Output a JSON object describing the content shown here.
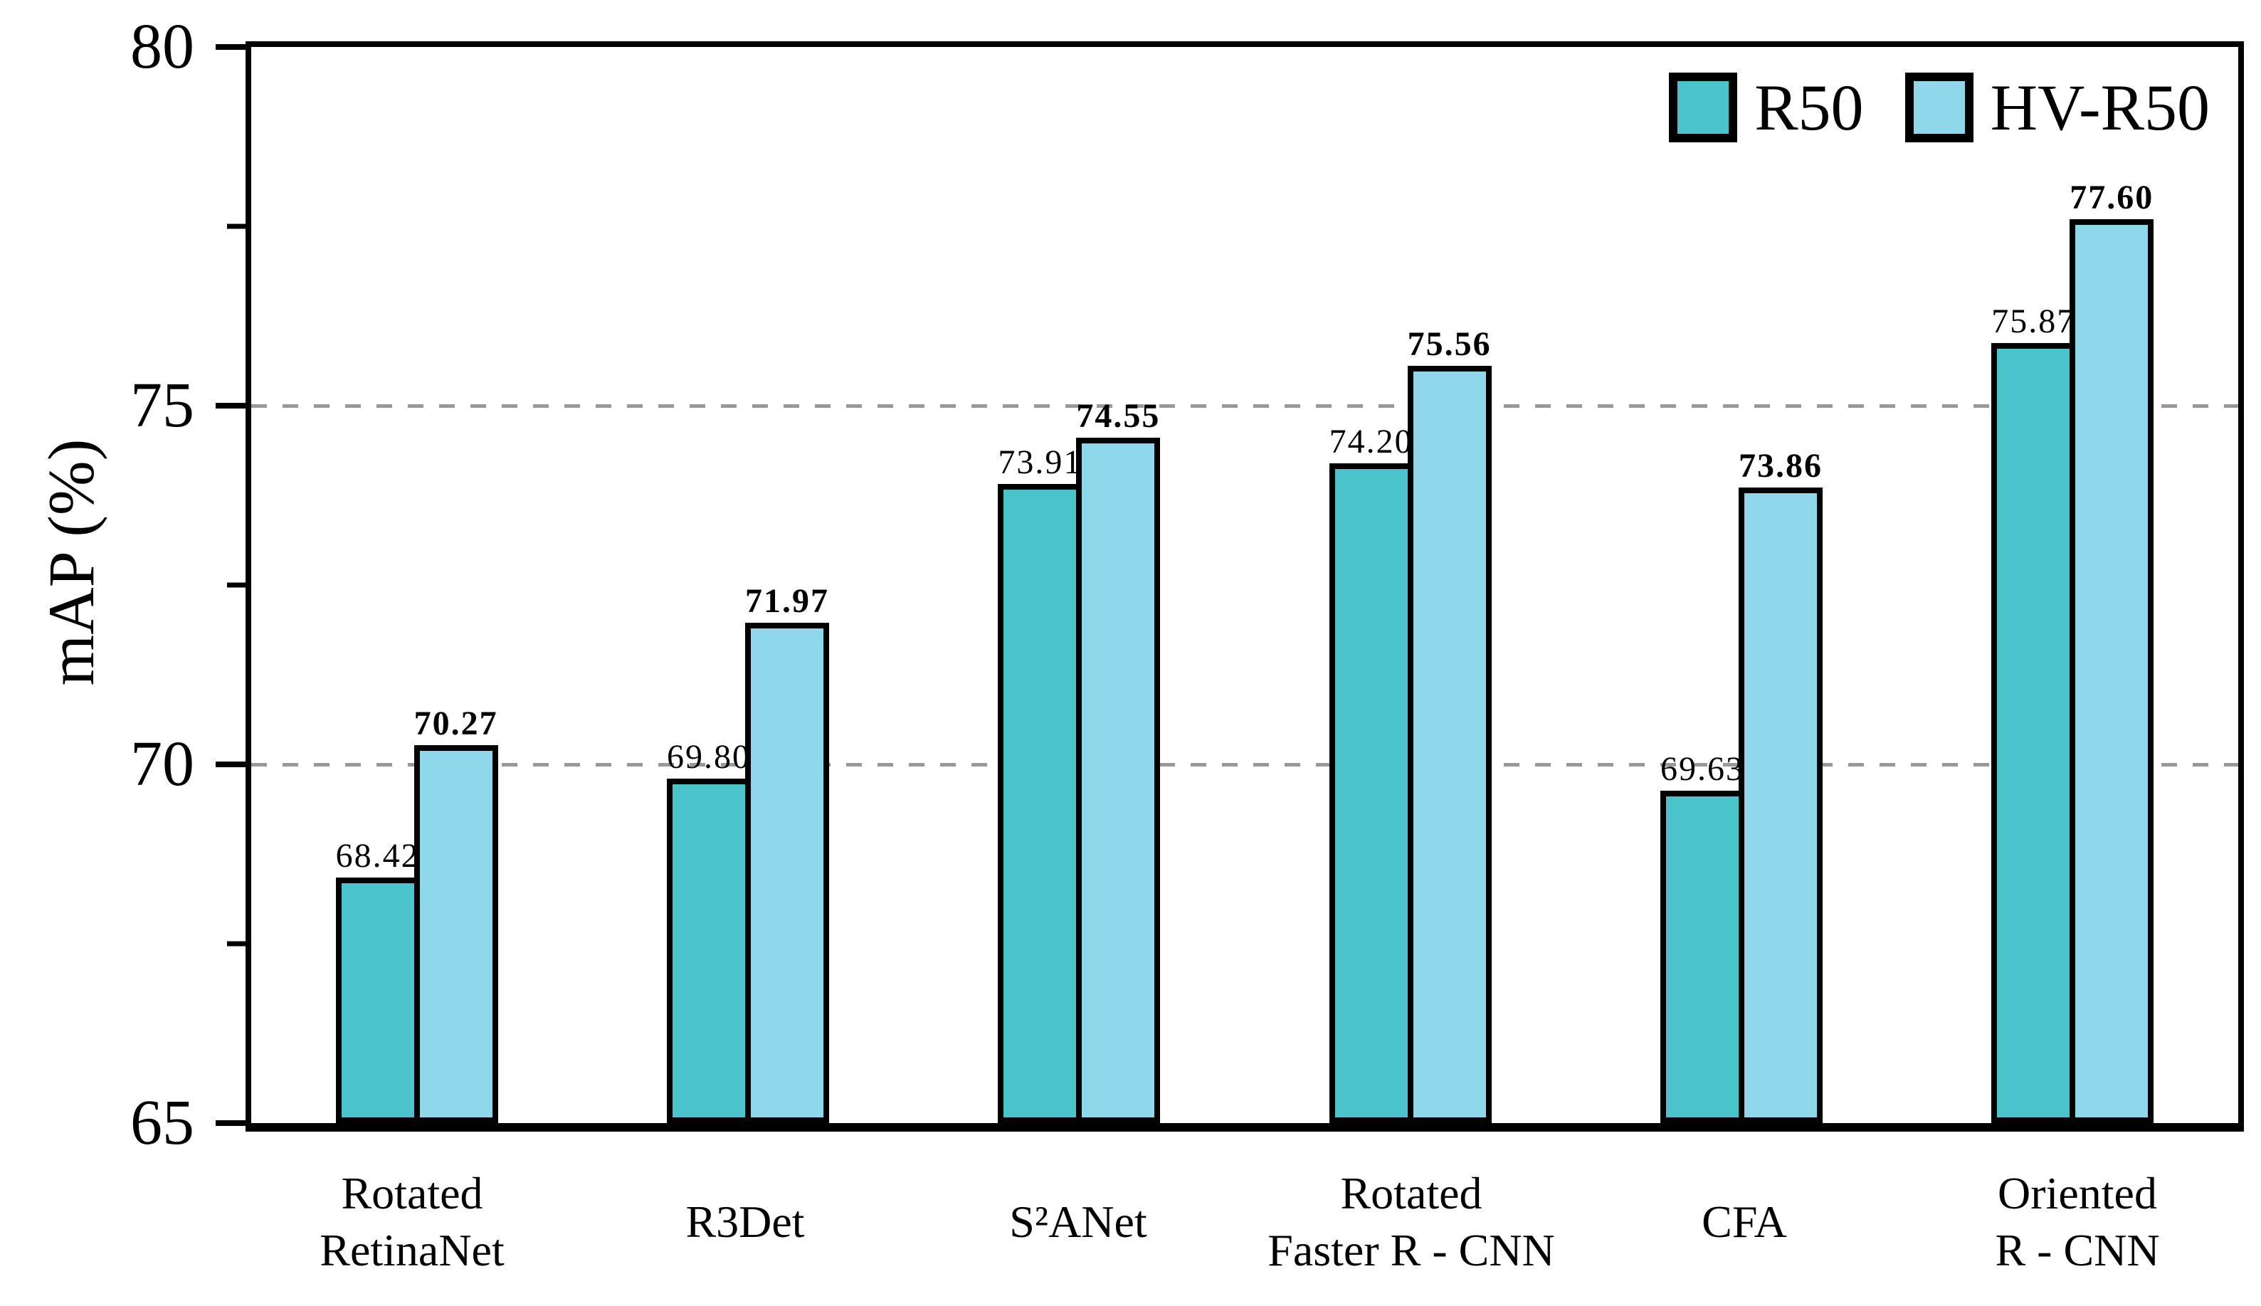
{
  "figure": {
    "background": "#ffffff",
    "axis_color": "#000000",
    "grid_color": "#999999"
  },
  "chart_data": {
    "type": "bar",
    "title": "",
    "xlabel": "",
    "ylabel": "mAP (%)",
    "ylim": [
      65,
      80
    ],
    "ytick_labels": [
      "65",
      "70",
      "75",
      "80"
    ],
    "ytick_values": [
      65,
      70,
      75,
      80
    ],
    "minor_tick_values": [
      67.5,
      72.5,
      77.5
    ],
    "gridline_values": [
      70,
      75
    ],
    "grid_style": "dashed-horizontal",
    "legend_position": "top-right",
    "categories": [
      "Rotated\nRetinaNet",
      "R3Det",
      "S²ANet",
      "Rotated\nFaster R - CNN",
      "CFA",
      "Oriented\nR - CNN"
    ],
    "series": [
      {
        "name": "R50",
        "color": "#4AC3CB",
        "values": [
          68.42,
          69.8,
          73.91,
          74.2,
          69.63,
          75.87
        ],
        "labels": [
          "68.42",
          "69.80",
          "73.91",
          "74.20",
          "69.63",
          "75.87"
        ],
        "label_weight": "normal"
      },
      {
        "name": "HV-R50",
        "color": "#8FD8EB",
        "values": [
          70.27,
          71.97,
          74.55,
          75.56,
          73.86,
          77.6
        ],
        "labels": [
          "70.27",
          "71.97",
          "74.55",
          "75.56",
          "73.86",
          "77.60"
        ],
        "label_weight": "bold"
      }
    ]
  }
}
